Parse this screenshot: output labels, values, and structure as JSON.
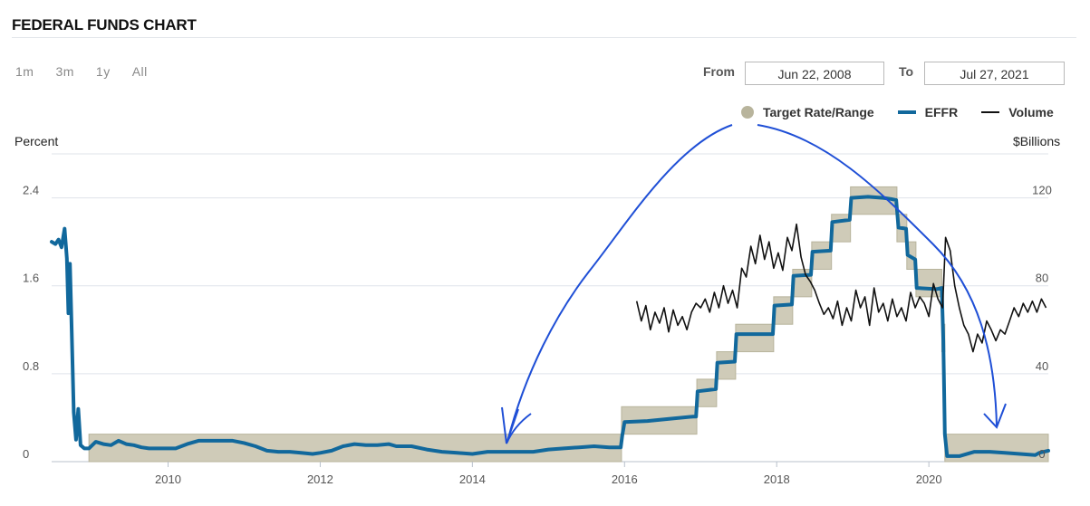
{
  "header": {
    "title": "FEDERAL FUNDS CHART"
  },
  "range_buttons": [
    "1m",
    "3m",
    "1y",
    "All"
  ],
  "date_range": {
    "from_label": "From",
    "from_value": "Jun 22, 2008",
    "to_label": "To",
    "to_value": "Jul 27, 2021"
  },
  "legend": {
    "target": "Target Rate/Range",
    "effr": "EFFR",
    "volume": "Volume"
  },
  "colors": {
    "target": "#b8b49c",
    "target_fill": "#cfcbb8",
    "effr": "#11689c",
    "volume": "#111111",
    "annotation": "#1f4fd6",
    "grid": "#dfe3ea"
  },
  "chart_data": {
    "type": "line",
    "ylabel_left": "Percent",
    "ylabel_right": "$Billions",
    "x_range": [
      2008.47,
      2021.57
    ],
    "y_left_range": [
      0,
      2.8
    ],
    "y_right_range": [
      0,
      140
    ],
    "x_ticks": [
      2010,
      2012,
      2014,
      2016,
      2018,
      2020
    ],
    "y_left_ticks": [
      0,
      0.8,
      1.6,
      2.4
    ],
    "y_right_ticks": [
      0,
      40,
      80,
      120
    ],
    "grid": true,
    "legend_position": "top-right",
    "series": [
      {
        "name": "Target Rate/Range",
        "kind": "band",
        "segments": [
          {
            "x0": 2008.47,
            "x1": 2008.78,
            "low": 2.0,
            "high": 2.0
          },
          {
            "x0": 2008.78,
            "x1": 2008.83,
            "low": 1.5,
            "high": 1.5
          },
          {
            "x0": 2008.83,
            "x1": 2008.96,
            "low": 1.0,
            "high": 1.0
          },
          {
            "x0": 2008.96,
            "x1": 2015.96,
            "low": 0.0,
            "high": 0.25
          },
          {
            "x0": 2015.96,
            "x1": 2016.95,
            "low": 0.25,
            "high": 0.5
          },
          {
            "x0": 2016.95,
            "x1": 2017.21,
            "low": 0.5,
            "high": 0.75
          },
          {
            "x0": 2017.21,
            "x1": 2017.46,
            "low": 0.75,
            "high": 1.0
          },
          {
            "x0": 2017.46,
            "x1": 2017.96,
            "low": 1.0,
            "high": 1.25
          },
          {
            "x0": 2017.96,
            "x1": 2018.21,
            "low": 1.25,
            "high": 1.5
          },
          {
            "x0": 2018.21,
            "x1": 2018.46,
            "low": 1.5,
            "high": 1.75
          },
          {
            "x0": 2018.46,
            "x1": 2018.72,
            "low": 1.75,
            "high": 2.0
          },
          {
            "x0": 2018.72,
            "x1": 2018.97,
            "low": 2.0,
            "high": 2.25
          },
          {
            "x0": 2018.97,
            "x1": 2019.58,
            "low": 2.25,
            "high": 2.5
          },
          {
            "x0": 2019.58,
            "x1": 2019.71,
            "low": 2.0,
            "high": 2.25
          },
          {
            "x0": 2019.71,
            "x1": 2019.83,
            "low": 1.75,
            "high": 2.0
          },
          {
            "x0": 2019.83,
            "x1": 2020.17,
            "low": 1.5,
            "high": 1.75
          },
          {
            "x0": 2020.17,
            "x1": 2020.21,
            "low": 1.0,
            "high": 1.25
          },
          {
            "x0": 2020.21,
            "x1": 2021.57,
            "low": 0.0,
            "high": 0.25
          }
        ]
      },
      {
        "name": "EFFR",
        "kind": "line",
        "points": [
          [
            2008.47,
            2.0
          ],
          [
            2008.52,
            1.98
          ],
          [
            2008.56,
            2.02
          ],
          [
            2008.6,
            1.95
          ],
          [
            2008.64,
            2.12
          ],
          [
            2008.67,
            1.85
          ],
          [
            2008.69,
            1.35
          ],
          [
            2008.71,
            1.8
          ],
          [
            2008.73,
            1.3
          ],
          [
            2008.76,
            0.45
          ],
          [
            2008.79,
            0.2
          ],
          [
            2008.82,
            0.48
          ],
          [
            2008.85,
            0.15
          ],
          [
            2008.9,
            0.12
          ],
          [
            2008.96,
            0.12
          ],
          [
            2009.05,
            0.18
          ],
          [
            2009.15,
            0.16
          ],
          [
            2009.25,
            0.15
          ],
          [
            2009.35,
            0.19
          ],
          [
            2009.45,
            0.16
          ],
          [
            2009.55,
            0.15
          ],
          [
            2009.65,
            0.13
          ],
          [
            2009.75,
            0.12
          ],
          [
            2009.85,
            0.12
          ],
          [
            2009.95,
            0.12
          ],
          [
            2010.1,
            0.12
          ],
          [
            2010.25,
            0.16
          ],
          [
            2010.4,
            0.19
          ],
          [
            2010.55,
            0.19
          ],
          [
            2010.7,
            0.19
          ],
          [
            2010.85,
            0.19
          ],
          [
            2011.0,
            0.17
          ],
          [
            2011.15,
            0.14
          ],
          [
            2011.3,
            0.1
          ],
          [
            2011.45,
            0.09
          ],
          [
            2011.6,
            0.09
          ],
          [
            2011.75,
            0.08
          ],
          [
            2011.9,
            0.07
          ],
          [
            2012.0,
            0.08
          ],
          [
            2012.15,
            0.1
          ],
          [
            2012.3,
            0.14
          ],
          [
            2012.45,
            0.16
          ],
          [
            2012.6,
            0.15
          ],
          [
            2012.75,
            0.15
          ],
          [
            2012.9,
            0.16
          ],
          [
            2013.0,
            0.14
          ],
          [
            2013.2,
            0.14
          ],
          [
            2013.4,
            0.11
          ],
          [
            2013.6,
            0.09
          ],
          [
            2013.8,
            0.08
          ],
          [
            2014.0,
            0.07
          ],
          [
            2014.2,
            0.09
          ],
          [
            2014.4,
            0.09
          ],
          [
            2014.6,
            0.09
          ],
          [
            2014.8,
            0.09
          ],
          [
            2015.0,
            0.11
          ],
          [
            2015.2,
            0.12
          ],
          [
            2015.4,
            0.13
          ],
          [
            2015.6,
            0.14
          ],
          [
            2015.8,
            0.13
          ],
          [
            2015.95,
            0.13
          ],
          [
            2015.97,
            0.24
          ],
          [
            2016.0,
            0.36
          ],
          [
            2016.3,
            0.37
          ],
          [
            2016.6,
            0.39
          ],
          [
            2016.9,
            0.41
          ],
          [
            2016.94,
            0.41
          ],
          [
            2016.96,
            0.64
          ],
          [
            2017.2,
            0.66
          ],
          [
            2017.22,
            0.9
          ],
          [
            2017.45,
            0.91
          ],
          [
            2017.47,
            1.16
          ],
          [
            2017.95,
            1.16
          ],
          [
            2017.97,
            1.42
          ],
          [
            2018.2,
            1.43
          ],
          [
            2018.22,
            1.69
          ],
          [
            2018.45,
            1.7
          ],
          [
            2018.47,
            1.91
          ],
          [
            2018.71,
            1.92
          ],
          [
            2018.73,
            2.18
          ],
          [
            2018.96,
            2.2
          ],
          [
            2018.98,
            2.4
          ],
          [
            2019.2,
            2.41
          ],
          [
            2019.4,
            2.4
          ],
          [
            2019.5,
            2.39
          ],
          [
            2019.57,
            2.38
          ],
          [
            2019.6,
            2.13
          ],
          [
            2019.7,
            2.12
          ],
          [
            2019.72,
            1.88
          ],
          [
            2019.82,
            1.84
          ],
          [
            2019.84,
            1.58
          ],
          [
            2020.1,
            1.57
          ],
          [
            2020.17,
            1.58
          ],
          [
            2020.19,
            1.1
          ],
          [
            2020.21,
            0.25
          ],
          [
            2020.24,
            0.05
          ],
          [
            2020.4,
            0.05
          ],
          [
            2020.6,
            0.09
          ],
          [
            2020.8,
            0.09
          ],
          [
            2021.0,
            0.08
          ],
          [
            2021.2,
            0.07
          ],
          [
            2021.4,
            0.06
          ],
          [
            2021.45,
            0.08
          ],
          [
            2021.57,
            0.1
          ]
        ]
      },
      {
        "name": "Volume",
        "kind": "line",
        "axis": "right",
        "points": [
          [
            2016.16,
            73
          ],
          [
            2016.22,
            64
          ],
          [
            2016.28,
            71
          ],
          [
            2016.34,
            60
          ],
          [
            2016.4,
            68
          ],
          [
            2016.46,
            63
          ],
          [
            2016.52,
            70
          ],
          [
            2016.58,
            59
          ],
          [
            2016.64,
            69
          ],
          [
            2016.7,
            62
          ],
          [
            2016.76,
            66
          ],
          [
            2016.82,
            60
          ],
          [
            2016.88,
            68
          ],
          [
            2016.94,
            72
          ],
          [
            2017.0,
            70
          ],
          [
            2017.06,
            74
          ],
          [
            2017.12,
            68
          ],
          [
            2017.18,
            77
          ],
          [
            2017.24,
            70
          ],
          [
            2017.3,
            80
          ],
          [
            2017.36,
            72
          ],
          [
            2017.42,
            78
          ],
          [
            2017.48,
            70
          ],
          [
            2017.54,
            88
          ],
          [
            2017.6,
            84
          ],
          [
            2017.66,
            98
          ],
          [
            2017.72,
            90
          ],
          [
            2017.78,
            103
          ],
          [
            2017.84,
            92
          ],
          [
            2017.9,
            100
          ],
          [
            2017.96,
            88
          ],
          [
            2018.02,
            95
          ],
          [
            2018.08,
            87
          ],
          [
            2018.14,
            102
          ],
          [
            2018.2,
            96
          ],
          [
            2018.26,
            108
          ],
          [
            2018.32,
            93
          ],
          [
            2018.38,
            85
          ],
          [
            2018.44,
            82
          ],
          [
            2018.5,
            78
          ],
          [
            2018.56,
            72
          ],
          [
            2018.62,
            67
          ],
          [
            2018.68,
            70
          ],
          [
            2018.74,
            65
          ],
          [
            2018.8,
            73
          ],
          [
            2018.86,
            62
          ],
          [
            2018.92,
            70
          ],
          [
            2018.98,
            64
          ],
          [
            2019.04,
            78
          ],
          [
            2019.1,
            70
          ],
          [
            2019.16,
            75
          ],
          [
            2019.22,
            62
          ],
          [
            2019.28,
            79
          ],
          [
            2019.34,
            68
          ],
          [
            2019.4,
            72
          ],
          [
            2019.46,
            64
          ],
          [
            2019.52,
            74
          ],
          [
            2019.58,
            66
          ],
          [
            2019.64,
            70
          ],
          [
            2019.7,
            64
          ],
          [
            2019.76,
            77
          ],
          [
            2019.82,
            70
          ],
          [
            2019.88,
            75
          ],
          [
            2019.94,
            72
          ],
          [
            2020.0,
            66
          ],
          [
            2020.06,
            81
          ],
          [
            2020.12,
            74
          ],
          [
            2020.18,
            70
          ],
          [
            2020.22,
            102
          ],
          [
            2020.28,
            96
          ],
          [
            2020.34,
            80
          ],
          [
            2020.4,
            70
          ],
          [
            2020.46,
            62
          ],
          [
            2020.52,
            58
          ],
          [
            2020.58,
            50
          ],
          [
            2020.64,
            58
          ],
          [
            2020.7,
            54
          ],
          [
            2020.76,
            64
          ],
          [
            2020.82,
            60
          ],
          [
            2020.88,
            55
          ],
          [
            2020.94,
            60
          ],
          [
            2021.0,
            58
          ],
          [
            2021.06,
            64
          ],
          [
            2021.12,
            70
          ],
          [
            2021.18,
            66
          ],
          [
            2021.24,
            72
          ],
          [
            2021.3,
            68
          ],
          [
            2021.36,
            73
          ],
          [
            2021.42,
            68
          ],
          [
            2021.48,
            74
          ],
          [
            2021.54,
            70
          ]
        ]
      }
    ]
  }
}
